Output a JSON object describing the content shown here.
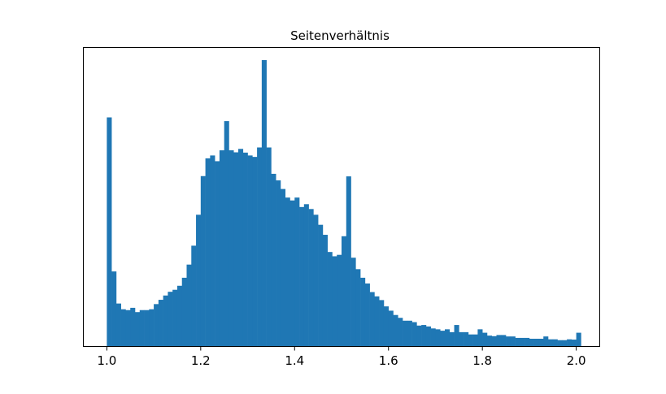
{
  "chart_data": {
    "type": "bar",
    "title": "Seitenverhältnis",
    "xlabel": "",
    "ylabel": "",
    "xlim": [
      0.95,
      2.05
    ],
    "ylim": [
      0,
      1
    ],
    "grid": false,
    "legend": "none",
    "bar_color": "#1f77b4",
    "bin_start": 1.0,
    "bin_width": 0.01,
    "x_ticks": [
      1.0,
      1.2,
      1.4,
      1.6,
      1.8,
      2.0
    ],
    "x_tick_labels": [
      "1.0",
      "1.2",
      "1.4",
      "1.6",
      "1.8",
      "2.0"
    ],
    "values": [
      0.8,
      0.262,
      0.15,
      0.13,
      0.127,
      0.135,
      0.12,
      0.127,
      0.127,
      0.13,
      0.148,
      0.163,
      0.178,
      0.191,
      0.198,
      0.212,
      0.24,
      0.286,
      0.352,
      0.46,
      0.595,
      0.657,
      0.667,
      0.647,
      0.685,
      0.787,
      0.685,
      0.678,
      0.69,
      0.677,
      0.667,
      0.662,
      0.695,
      1.0,
      0.695,
      0.603,
      0.58,
      0.55,
      0.52,
      0.51,
      0.52,
      0.487,
      0.497,
      0.48,
      0.46,
      0.425,
      0.39,
      0.33,
      0.315,
      0.32,
      0.385,
      0.594,
      0.31,
      0.27,
      0.24,
      0.22,
      0.19,
      0.175,
      0.162,
      0.14,
      0.125,
      0.11,
      0.1,
      0.09,
      0.09,
      0.085,
      0.073,
      0.075,
      0.07,
      0.063,
      0.06,
      0.055,
      0.06,
      0.05,
      0.075,
      0.05,
      0.05,
      0.042,
      0.042,
      0.06,
      0.048,
      0.038,
      0.036,
      0.04,
      0.04,
      0.035,
      0.035,
      0.03,
      0.03,
      0.03,
      0.027,
      0.027,
      0.027,
      0.035,
      0.025,
      0.025,
      0.022,
      0.022,
      0.025,
      0.024,
      0.048
    ]
  }
}
